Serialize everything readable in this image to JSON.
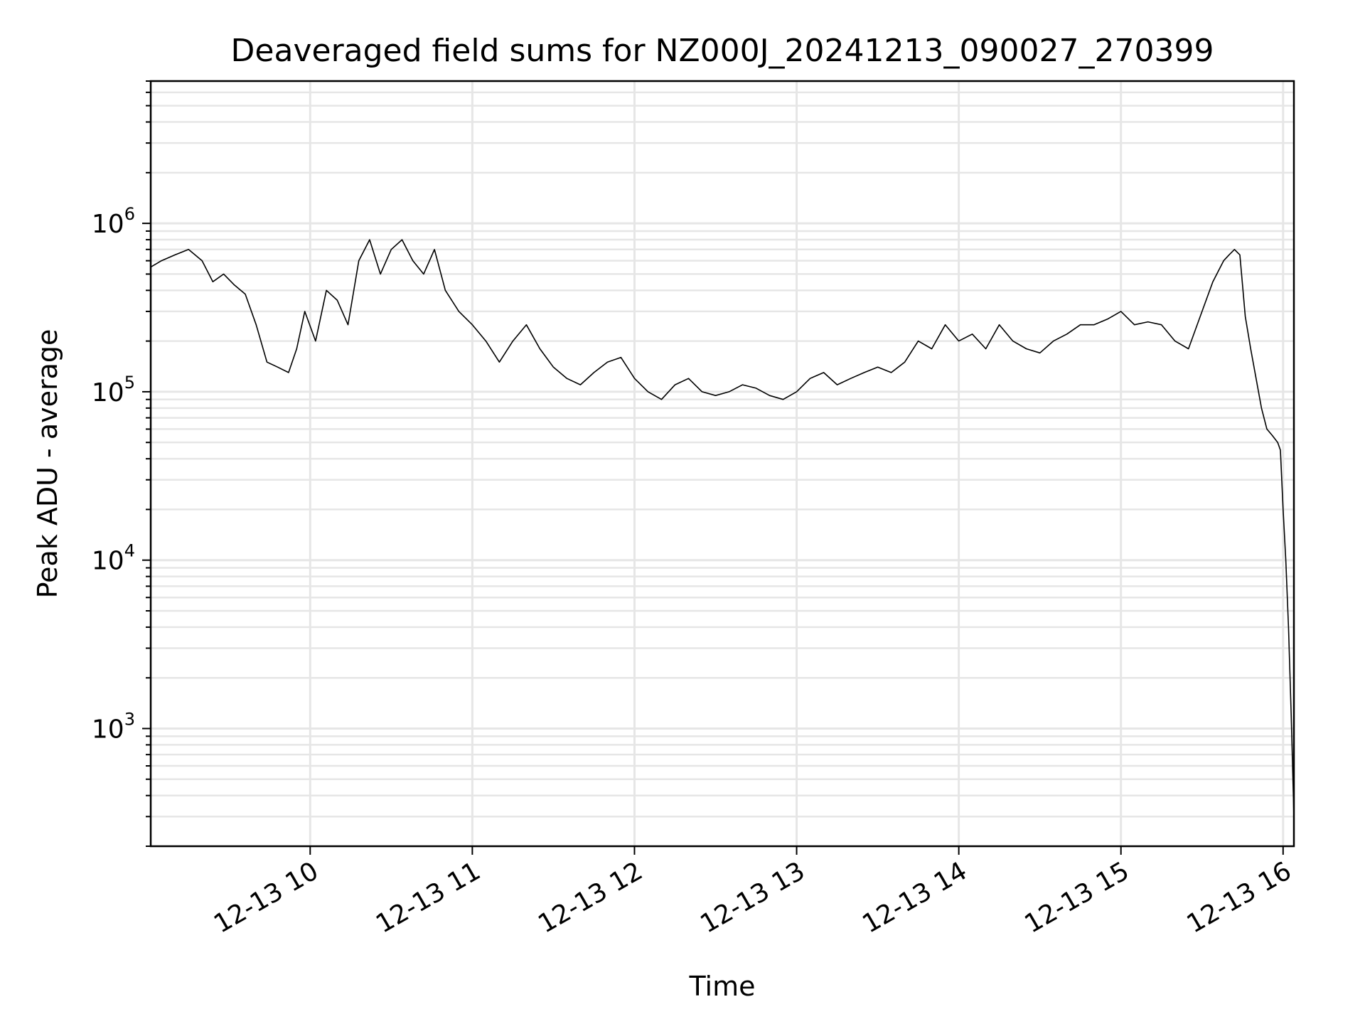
{
  "chart_data": {
    "type": "line",
    "title": "Deaveraged field sums for NZ000J_20241213_090027_270399",
    "xlabel": "Time",
    "ylabel": "Peak ADU - average",
    "yscale": "log",
    "ylim": [
      200,
      7000000
    ],
    "xlim": [
      "2024-12-13T09:01:00",
      "2024-12-13T16:04:00"
    ],
    "grid": true,
    "legend": "none",
    "line_color": "#000000",
    "x_ticks": [
      {
        "value": "2024-12-13T10:00:00",
        "label": "12-13 10"
      },
      {
        "value": "2024-12-13T11:00:00",
        "label": "12-13 11"
      },
      {
        "value": "2024-12-13T12:00:00",
        "label": "12-13 12"
      },
      {
        "value": "2024-12-13T13:00:00",
        "label": "12-13 13"
      },
      {
        "value": "2024-12-13T14:00:00",
        "label": "12-13 14"
      },
      {
        "value": "2024-12-13T15:00:00",
        "label": "12-13 15"
      },
      {
        "value": "2024-12-13T16:00:00",
        "label": "12-13 16"
      }
    ],
    "y_ticks": [
      {
        "value": 1000,
        "base": "10",
        "exp": "3"
      },
      {
        "value": 10000,
        "base": "10",
        "exp": "4"
      },
      {
        "value": 100000,
        "base": "10",
        "exp": "5"
      },
      {
        "value": 1000000,
        "base": "10",
        "exp": "6"
      }
    ],
    "series": [
      {
        "x": [
          "2024-12-13T09:01:00",
          "2024-12-13T09:05:00",
          "2024-12-13T09:10:00",
          "2024-12-13T09:15:00",
          "2024-12-13T09:20:00",
          "2024-12-13T09:24:00",
          "2024-12-13T09:28:00",
          "2024-12-13T09:32:00",
          "2024-12-13T09:36:00",
          "2024-12-13T09:40:00",
          "2024-12-13T09:44:00",
          "2024-12-13T09:48:00",
          "2024-12-13T09:52:00",
          "2024-12-13T09:55:00",
          "2024-12-13T09:58:00",
          "2024-12-13T10:02:00",
          "2024-12-13T10:06:00",
          "2024-12-13T10:10:00",
          "2024-12-13T10:14:00",
          "2024-12-13T10:18:00",
          "2024-12-13T10:22:00",
          "2024-12-13T10:26:00",
          "2024-12-13T10:30:00",
          "2024-12-13T10:34:00",
          "2024-12-13T10:38:00",
          "2024-12-13T10:42:00",
          "2024-12-13T10:46:00",
          "2024-12-13T10:50:00",
          "2024-12-13T10:55:00",
          "2024-12-13T11:00:00",
          "2024-12-13T11:05:00",
          "2024-12-13T11:10:00",
          "2024-12-13T11:15:00",
          "2024-12-13T11:20:00",
          "2024-12-13T11:25:00",
          "2024-12-13T11:30:00",
          "2024-12-13T11:35:00",
          "2024-12-13T11:40:00",
          "2024-12-13T11:45:00",
          "2024-12-13T11:50:00",
          "2024-12-13T11:55:00",
          "2024-12-13T12:00:00",
          "2024-12-13T12:05:00",
          "2024-12-13T12:10:00",
          "2024-12-13T12:15:00",
          "2024-12-13T12:20:00",
          "2024-12-13T12:25:00",
          "2024-12-13T12:30:00",
          "2024-12-13T12:35:00",
          "2024-12-13T12:40:00",
          "2024-12-13T12:45:00",
          "2024-12-13T12:50:00",
          "2024-12-13T12:55:00",
          "2024-12-13T13:00:00",
          "2024-12-13T13:05:00",
          "2024-12-13T13:10:00",
          "2024-12-13T13:15:00",
          "2024-12-13T13:20:00",
          "2024-12-13T13:25:00",
          "2024-12-13T13:30:00",
          "2024-12-13T13:35:00",
          "2024-12-13T13:40:00",
          "2024-12-13T13:45:00",
          "2024-12-13T13:50:00",
          "2024-12-13T13:55:00",
          "2024-12-13T14:00:00",
          "2024-12-13T14:05:00",
          "2024-12-13T14:10:00",
          "2024-12-13T14:15:00",
          "2024-12-13T14:20:00",
          "2024-12-13T14:25:00",
          "2024-12-13T14:30:00",
          "2024-12-13T14:35:00",
          "2024-12-13T14:40:00",
          "2024-12-13T14:45:00",
          "2024-12-13T14:50:00",
          "2024-12-13T14:55:00",
          "2024-12-13T15:00:00",
          "2024-12-13T15:05:00",
          "2024-12-13T15:10:00",
          "2024-12-13T15:15:00",
          "2024-12-13T15:20:00",
          "2024-12-13T15:25:00",
          "2024-12-13T15:30:00",
          "2024-12-13T15:34:00",
          "2024-12-13T15:38:00",
          "2024-12-13T15:40:00",
          "2024-12-13T15:42:00",
          "2024-12-13T15:44:00",
          "2024-12-13T15:46:00",
          "2024-12-13T15:48:00",
          "2024-12-13T15:50:00",
          "2024-12-13T15:52:00",
          "2024-12-13T15:54:00",
          "2024-12-13T15:56:00",
          "2024-12-13T15:58:00",
          "2024-12-13T15:59:00",
          "2024-12-13T16:00:00",
          "2024-12-13T16:01:00",
          "2024-12-13T16:02:00",
          "2024-12-13T16:03:00",
          "2024-12-13T16:04:00"
        ],
        "values": [
          550000,
          600000,
          650000,
          700000,
          600000,
          450000,
          500000,
          430000,
          380000,
          250000,
          150000,
          140000,
          130000,
          180000,
          300000,
          200000,
          400000,
          350000,
          250000,
          600000,
          800000,
          500000,
          700000,
          800000,
          600000,
          500000,
          700000,
          400000,
          300000,
          250000,
          200000,
          150000,
          200000,
          250000,
          180000,
          140000,
          120000,
          110000,
          130000,
          150000,
          160000,
          120000,
          100000,
          90000,
          110000,
          120000,
          100000,
          95000,
          100000,
          110000,
          105000,
          95000,
          90000,
          100000,
          120000,
          130000,
          110000,
          120000,
          130000,
          140000,
          130000,
          150000,
          200000,
          180000,
          250000,
          200000,
          220000,
          180000,
          250000,
          200000,
          180000,
          170000,
          200000,
          220000,
          250000,
          250000,
          270000,
          300000,
          250000,
          260000,
          250000,
          200000,
          180000,
          300000,
          450000,
          600000,
          650000,
          700000,
          650000,
          280000,
          180000,
          120000,
          80000,
          60000,
          55000,
          50000,
          45000,
          20000,
          10000,
          4000,
          1200,
          300
        ]
      }
    ]
  }
}
